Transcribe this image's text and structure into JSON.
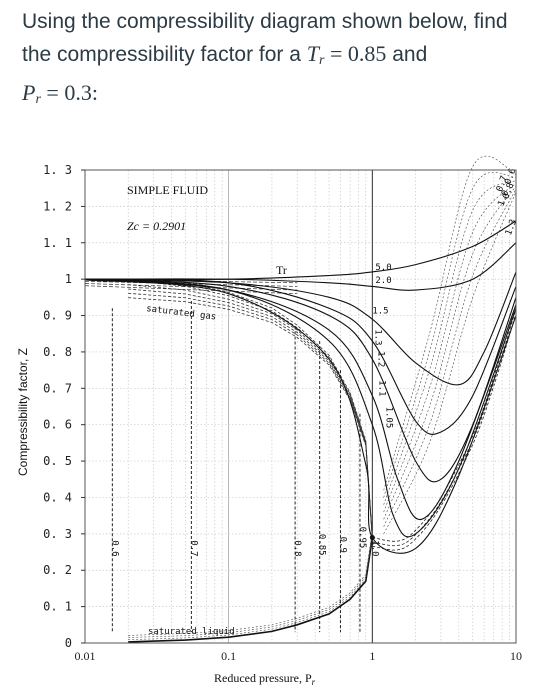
{
  "question": {
    "line1": "Using the compressibility diagram shown below, find",
    "line2_prefix": "the compressibility factor for a ",
    "tr_symbol": "T",
    "tr_sub": "r",
    "tr_value": " = 0.85",
    "line2_suffix": " and",
    "pr_symbol": "P",
    "pr_sub": "r",
    "pr_value": " = 0.3:"
  },
  "chart_data": {
    "type": "line",
    "title": "SIMPLE FLUID",
    "subtitle": "Zc = 0.2901",
    "xlabel": "Reduced pressure, P",
    "xlabel_sub": "r",
    "ylabel": "Compressibility factor, Z",
    "x_scale": "log",
    "xlim": [
      0.01,
      10
    ],
    "ylim": [
      0,
      1.3
    ],
    "x_ticks": [
      "0.01",
      "0.1",
      "1",
      "10"
    ],
    "y_ticks": [
      "0",
      "0. 1",
      "0. 2",
      "0. 3",
      "0. 4",
      "0. 5",
      "0. 6",
      "0. 7",
      "0. 8",
      "0. 9",
      "1",
      "1. 1",
      "1. 2",
      "1. 3"
    ],
    "grid": true,
    "tr_header": "Tr",
    "annotations": {
      "saturated_gas": "saturated gas",
      "saturated_liquid": "saturated liquid"
    },
    "isotherm_labels": [
      "0.6",
      "0.7",
      "0.8",
      "0.85",
      "0.9",
      "0.95",
      "1.0",
      "1.05",
      "1.1",
      "1.2",
      "1.3",
      "1.5",
      "2.0",
      "5.0"
    ],
    "series": [
      {
        "name": "5.0",
        "x": [
          0.01,
          0.1,
          0.5,
          1,
          2,
          5,
          10
        ],
        "y": [
          1.0,
          1.0,
          1.01,
          1.02,
          1.04,
          1.09,
          1.16
        ]
      },
      {
        "name": "2.0",
        "x": [
          0.01,
          0.1,
          0.5,
          1,
          2,
          5,
          10
        ],
        "y": [
          1.0,
          1.0,
          0.99,
          0.98,
          0.97,
          1.0,
          1.1
        ]
      },
      {
        "name": "1.5",
        "x": [
          0.01,
          0.1,
          0.5,
          1,
          2,
          4,
          6,
          10
        ],
        "y": [
          1.0,
          0.99,
          0.95,
          0.89,
          0.77,
          0.71,
          0.8,
          1.02
        ]
      },
      {
        "name": "1.3",
        "x": [
          0.01,
          0.1,
          0.5,
          1,
          2,
          3,
          5,
          10
        ],
        "y": [
          1.0,
          0.99,
          0.92,
          0.83,
          0.61,
          0.58,
          0.68,
          0.98
        ]
      },
      {
        "name": "1.2",
        "x": [
          0.01,
          0.1,
          0.5,
          1,
          2,
          3,
          5,
          10
        ],
        "y": [
          1.0,
          0.98,
          0.9,
          0.78,
          0.5,
          0.45,
          0.6,
          0.95
        ]
      },
      {
        "name": "1.1",
        "x": [
          0.01,
          0.1,
          0.5,
          1,
          1.5,
          2.2,
          4,
          10
        ],
        "y": [
          0.999,
          0.97,
          0.86,
          0.68,
          0.45,
          0.34,
          0.5,
          0.93
        ]
      },
      {
        "name": "1.05",
        "x": [
          0.01,
          0.1,
          0.5,
          1,
          1.4,
          2,
          4,
          10
        ],
        "y": [
          0.999,
          0.97,
          0.83,
          0.6,
          0.35,
          0.3,
          0.48,
          0.92
        ]
      },
      {
        "name": "1.0",
        "x": [
          0.01,
          0.1,
          0.5,
          0.9,
          1,
          2,
          4,
          10
        ],
        "y": [
          0.998,
          0.96,
          0.78,
          0.49,
          0.29,
          0.26,
          0.46,
          0.9
        ]
      }
    ],
    "saturation_gas_curve": {
      "x": [
        0.02,
        0.05,
        0.1,
        0.2,
        0.3,
        0.5,
        0.7,
        0.9,
        1.0
      ],
      "y": [
        0.985,
        0.97,
        0.945,
        0.905,
        0.86,
        0.78,
        0.68,
        0.55,
        0.29
      ]
    },
    "saturation_liquid_curve": {
      "x": [
        0.02,
        0.05,
        0.1,
        0.2,
        0.3,
        0.5,
        0.7,
        0.9,
        1.0
      ],
      "y": [
        0.003,
        0.008,
        0.016,
        0.032,
        0.05,
        0.08,
        0.12,
        0.17,
        0.29
      ]
    },
    "high_pressure_envelope": {
      "x": [
        1,
        1.5,
        2,
        3,
        5,
        7,
        10
      ],
      "y": [
        0.29,
        0.28,
        0.31,
        0.4,
        0.57,
        0.73,
        0.93
      ]
    }
  }
}
